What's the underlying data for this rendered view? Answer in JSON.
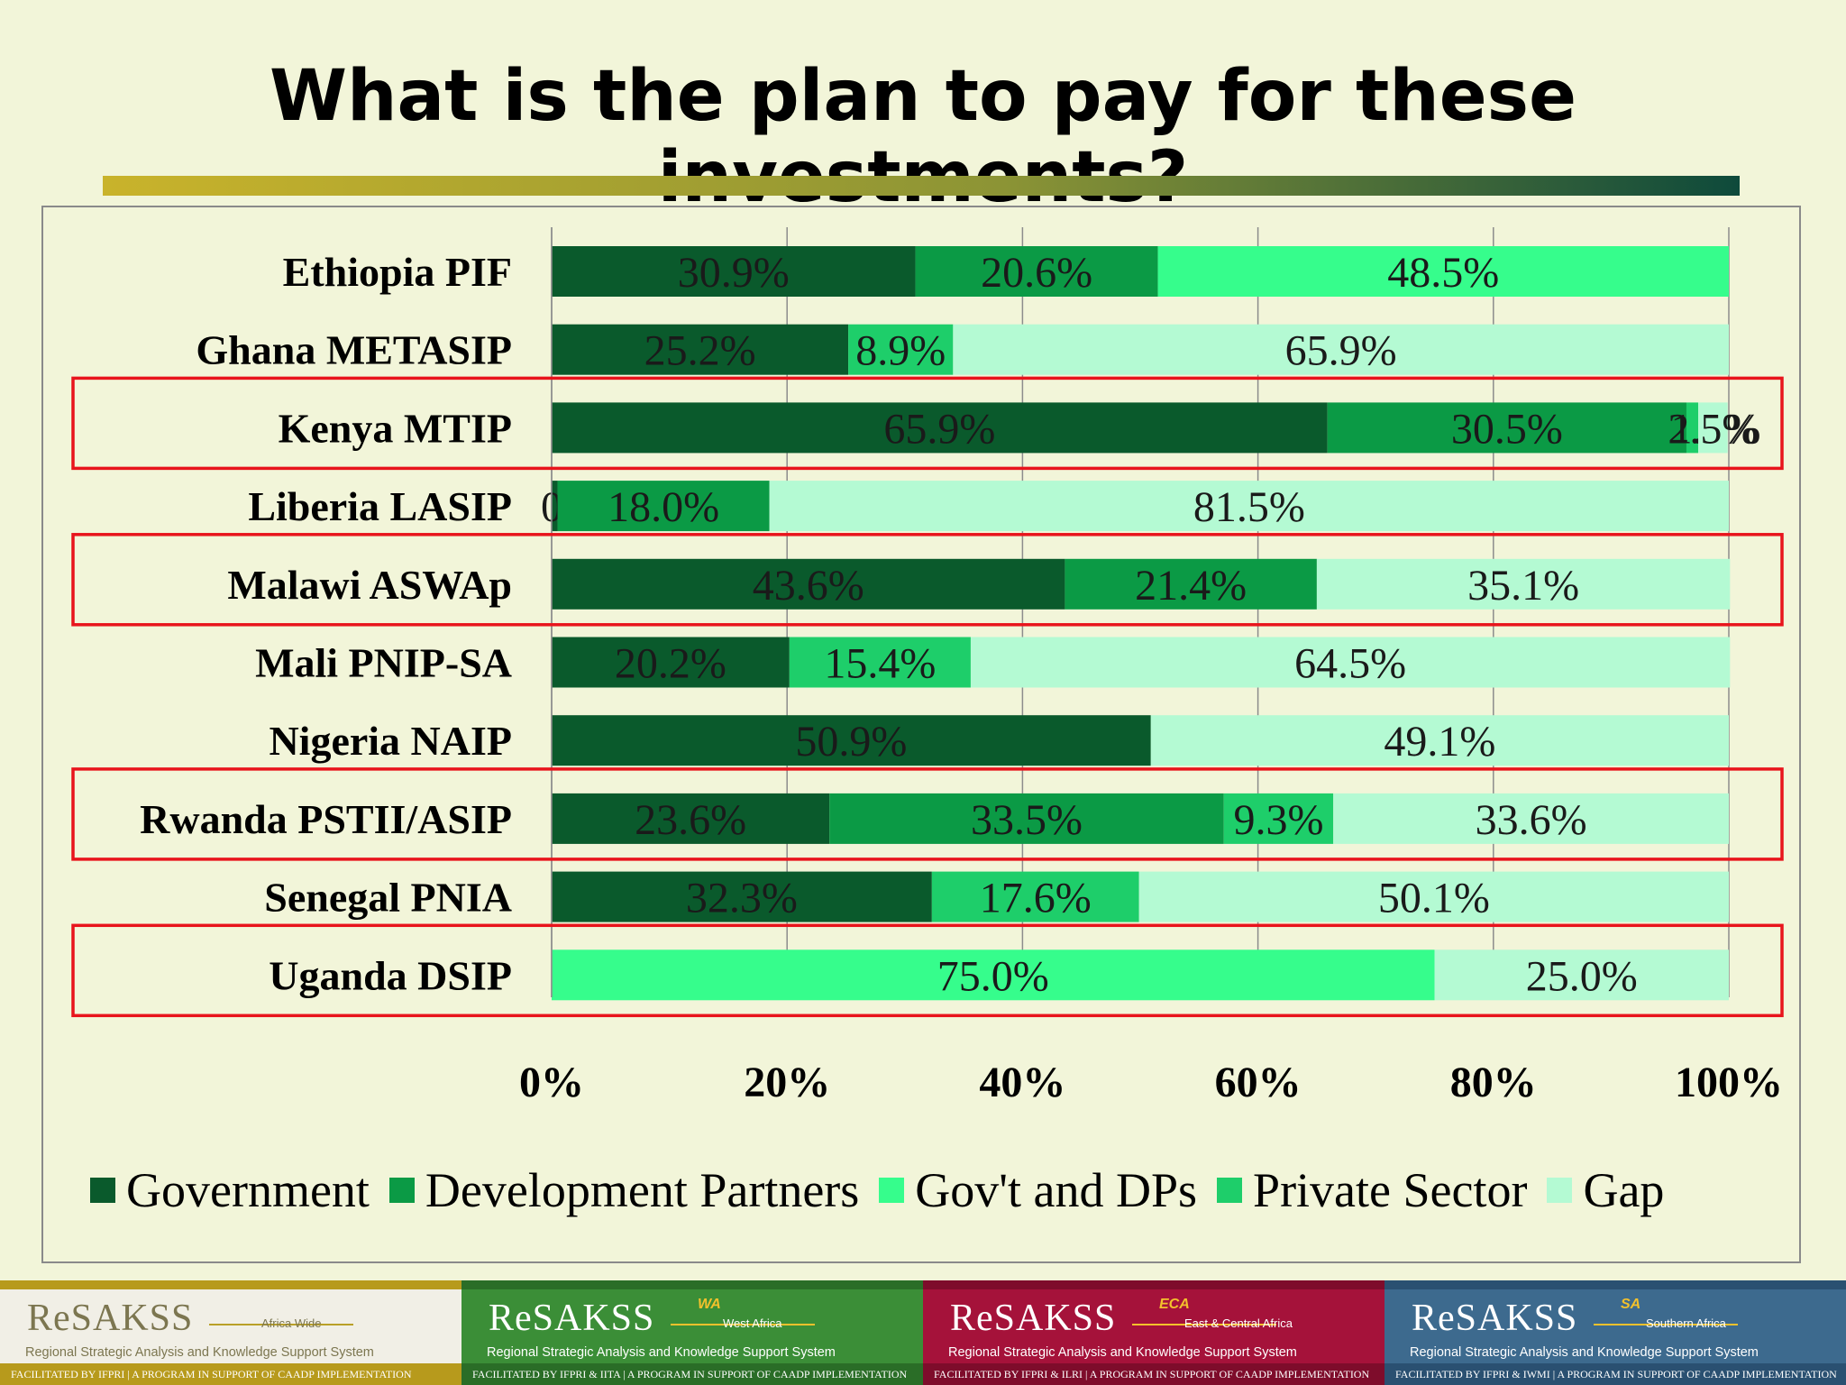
{
  "slide": {
    "title": "What is the plan to pay for these investments?"
  },
  "chart_data": {
    "type": "bar",
    "orientation": "horizontal",
    "stacked": true,
    "percent_axis": true,
    "categories": [
      "Ethiopia PIF",
      "Ghana METASIP",
      "Kenya MTIP",
      "Liberia LASIP",
      "Malawi ASWAp",
      "Mali PNIP-SA",
      "Nigeria NAIP",
      "Rwanda PSTII/ASIP",
      "Senegal PNIA",
      "Uganda DSIP"
    ],
    "series": [
      {
        "name": "Government",
        "color": "#0a5a2c",
        "values": [
          30.9,
          25.2,
          65.9,
          0.5,
          43.6,
          20.2,
          50.9,
          23.6,
          32.3,
          0
        ]
      },
      {
        "name": "Development Partners",
        "color": "#0b9a45",
        "values": [
          20.6,
          0,
          30.5,
          18.0,
          21.4,
          0,
          0,
          33.5,
          0,
          0
        ]
      },
      {
        "name": "Gov't and DPs",
        "color": "#36fd8c",
        "values": [
          48.5,
          0,
          0,
          0,
          0,
          0,
          0,
          0,
          0,
          75.0
        ]
      },
      {
        "name": "Private Sector",
        "color": "#1ece6a",
        "values": [
          0,
          8.9,
          1.0,
          0,
          0,
          15.4,
          0,
          9.3,
          17.6,
          0
        ]
      },
      {
        "name": "Gap",
        "color": "#b4fad3",
        "values": [
          0,
          65.9,
          2.5,
          81.5,
          35.1,
          64.5,
          49.1,
          33.6,
          50.1,
          25.0
        ]
      }
    ],
    "data_labels": [
      [
        "30.9%",
        "20.6%",
        "48.5%"
      ],
      [
        "25.2%",
        "8.9%",
        "65.9%"
      ],
      [
        "65.9%",
        "30.5%",
        "1.0%",
        "2.5%"
      ],
      [
        "0.5%",
        "18.0%",
        "81.5%"
      ],
      [
        "43.6%",
        "21.4%",
        "35.1%"
      ],
      [
        "20.2%",
        "15.4%",
        "64.5%"
      ],
      [
        "50.9%",
        "49.1%"
      ],
      [
        "23.6%",
        "33.5%",
        "9.3%",
        "33.6%"
      ],
      [
        "32.3%",
        "17.6%",
        "50.1%"
      ],
      [
        "75.0%",
        "25.0%"
      ]
    ],
    "xlim": [
      0,
      100
    ],
    "x_ticks": [
      "0%",
      "20%",
      "40%",
      "60%",
      "80%",
      "100%"
    ],
    "grid": "vertical",
    "legend_position": "bottom",
    "highlighted_categories": [
      "Kenya MTIP",
      "Malawi ASWAp",
      "Rwanda PSTII/ASIP",
      "Uganda DSIP"
    ],
    "highlight_color": "#e8141c"
  },
  "legend": {
    "items": [
      {
        "label": "Government",
        "color": "#0a5a2c"
      },
      {
        "label": "Development Partners",
        "color": "#0b9a45"
      },
      {
        "label": "Gov't and DPs",
        "color": "#36fd8c"
      },
      {
        "label": "Private Sector",
        "color": "#1ece6a"
      },
      {
        "label": "Gap",
        "color": "#b4fad3"
      }
    ]
  },
  "footer": {
    "panels": [
      {
        "brand": "ReSAKSS",
        "superscript": "",
        "region": "Africa Wide",
        "subtitle": "Regional Strategic Analysis and Knowledge Support System",
        "facilitated": "FACILITATED BY IFPRI  |  A PROGRAM IN SUPPORT OF CAADP IMPLEMENTATION",
        "bg": "#f1efe6",
        "text_color": "#7c7650",
        "sup_color": "#b9a028",
        "fac_bg": "#b79a1c",
        "fac_color": "#ffffff"
      },
      {
        "brand": "ReSAKSS",
        "superscript": "WA",
        "region": "West Africa",
        "subtitle": "Regional Strategic Analysis and Knowledge Support System",
        "facilitated": "FACILITATED BY IFPRI & IITA  |  A PROGRAM IN SUPPORT OF CAADP IMPLEMENTATION",
        "bg": "#3b8e37",
        "text_color": "#ffffff",
        "sup_color": "#f3c12c",
        "fac_bg": "#2a6d27",
        "fac_color": "#ffffff"
      },
      {
        "brand": "ReSAKSS",
        "superscript": "ECA",
        "region": "East & Central Africa",
        "subtitle": "Regional Strategic Analysis and Knowledge Support System",
        "facilitated": "FACILITATED BY IFPRI & ILRI  |  A PROGRAM IN SUPPORT OF CAADP IMPLEMENTATION",
        "bg": "#a5123a",
        "text_color": "#ffffff",
        "sup_color": "#f3c12c",
        "fac_bg": "#7e0c2b",
        "fac_color": "#ffffff"
      },
      {
        "brand": "ReSAKSS",
        "superscript": "SA",
        "region": "Southern Africa",
        "subtitle": "Regional Strategic Analysis and Knowledge Support System",
        "facilitated": "FACILITATED BY IFPRI & IWMI  |  A PROGRAM IN SUPPORT OF CAADP IMPLEMENTATION",
        "bg": "#3d6a8e",
        "text_color": "#ffffff",
        "sup_color": "#f3c12c",
        "fac_bg": "#2a5071",
        "fac_color": "#ffffff"
      }
    ]
  }
}
